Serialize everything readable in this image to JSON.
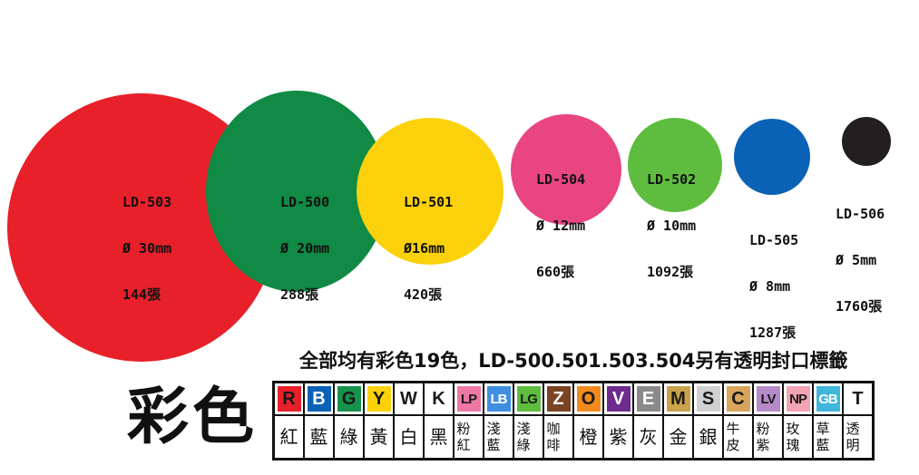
{
  "dots": [
    {
      "id": "ld-503",
      "code": "LD-503",
      "size": "Ø 30mm",
      "count": "144張",
      "color": "#e8202a"
    },
    {
      "id": "ld-500",
      "code": "LD-500",
      "size": "Ø 20mm",
      "count": "288張",
      "color": "#108a45"
    },
    {
      "id": "ld-501",
      "code": "LD-501",
      "size": "Ø16mm",
      "count": "420張",
      "color": "#fbd10b"
    },
    {
      "id": "ld-504",
      "code": "LD-504",
      "size": "Ø 12mm",
      "count": "660張",
      "color": "#e84581"
    },
    {
      "id": "ld-502",
      "code": "LD-502",
      "size": "Ø 10mm",
      "count": "1092張",
      "color": "#5ebd3e"
    },
    {
      "id": "ld-505",
      "code": "LD-505",
      "size": "Ø 8mm",
      "count": "1287張",
      "color": "#0a62b6"
    },
    {
      "id": "ld-506",
      "code": "LD-506",
      "size": "Ø 5mm",
      "count": "1760張",
      "color": "#231f20"
    }
  ],
  "headline": "全部均有彩色19色，LD-500.501.503.504另有透明封口標籤",
  "title": "彩色",
  "swatches": [
    {
      "code": "R",
      "name": "紅",
      "bg": "#e8202a",
      "fg": "#1a1a1a"
    },
    {
      "code": "B",
      "name": "藍",
      "bg": "#0a62b6",
      "fg": "#ffffff"
    },
    {
      "code": "G",
      "name": "綠",
      "bg": "#15934a",
      "fg": "#1a1a1a"
    },
    {
      "code": "Y",
      "name": "黃",
      "bg": "#fbd10b",
      "fg": "#1a1a1a"
    },
    {
      "code": "W",
      "name": "白",
      "bg": "#ffffff",
      "fg": "#1a1a1a"
    },
    {
      "code": "K",
      "name": "黑",
      "bg": "#ffffff",
      "fg": "#1a1a1a"
    },
    {
      "code": "LP",
      "name": "粉紅",
      "bg": "#ee77a5",
      "fg": "#1a1a1a"
    },
    {
      "code": "LB",
      "name": "淺藍",
      "bg": "#3f8ee0",
      "fg": "#ffffff"
    },
    {
      "code": "LG",
      "name": "淺綠",
      "bg": "#5ebd3e",
      "fg": "#1a1a1a"
    },
    {
      "code": "Z",
      "name": "咖啡",
      "bg": "#7a4324",
      "fg": "#ffffff"
    },
    {
      "code": "O",
      "name": "橙",
      "bg": "#f28b1e",
      "fg": "#1a1a1a"
    },
    {
      "code": "V",
      "name": "紫",
      "bg": "#6e2c8f",
      "fg": "#ffffff"
    },
    {
      "code": "E",
      "name": "灰",
      "bg": "#8a8a8a",
      "fg": "#ffffff"
    },
    {
      "code": "M",
      "name": "金",
      "bg": "#c9a24a",
      "fg": "#1a1a1a"
    },
    {
      "code": "S",
      "name": "銀",
      "bg": "#cfd0d2",
      "fg": "#1a1a1a"
    },
    {
      "code": "C",
      "name": "牛皮",
      "bg": "#d9a45b",
      "fg": "#1a1a1a"
    },
    {
      "code": "LV",
      "name": "粉紫",
      "bg": "#b58ac8",
      "fg": "#1a1a1a"
    },
    {
      "code": "NP",
      "name": "玫瑰",
      "bg": "#f4a3b5",
      "fg": "#1a1a1a"
    },
    {
      "code": "GB",
      "name": "草藍",
      "bg": "#3fb6dc",
      "fg": "#ffffff"
    },
    {
      "code": "T",
      "name": "透明",
      "bg": "#ffffff",
      "fg": "#1a1a1a"
    }
  ]
}
